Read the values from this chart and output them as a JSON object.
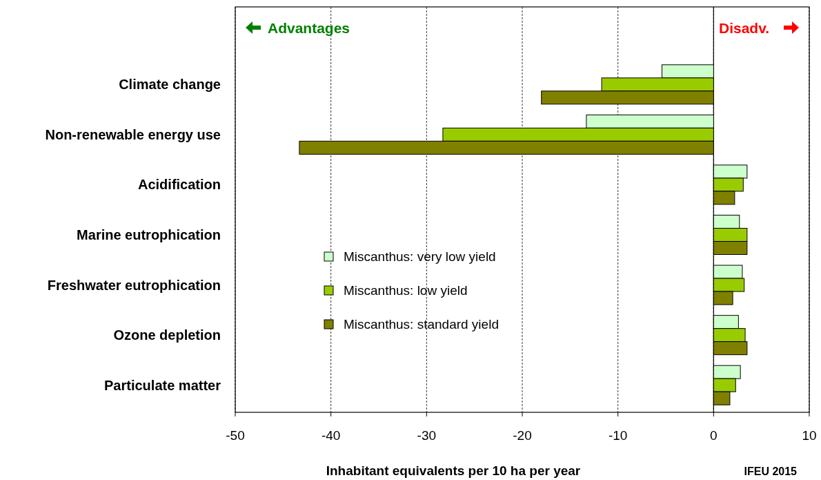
{
  "chart_data": {
    "type": "bar",
    "orientation": "horizontal",
    "xlabel": "Inhabitant equivalents per 10 ha per year",
    "categories": [
      "Climate change",
      "Non-renewable energy use",
      "Acidification",
      "Marine eutrophication",
      "Freshwater eutrophication",
      "Ozone depletion",
      "Particulate matter"
    ],
    "series": [
      {
        "name": "Miscanthus: very low yield",
        "color": "#ccffcc",
        "values": [
          -5.4,
          -13.3,
          3.5,
          2.7,
          3.0,
          2.6,
          2.8
        ]
      },
      {
        "name": "Miscanthus: low yield",
        "color": "#99cc00",
        "values": [
          -11.7,
          -28.3,
          3.1,
          3.5,
          3.2,
          3.3,
          2.3
        ]
      },
      {
        "name": "Miscanthus: standard yield",
        "color": "#808000",
        "values": [
          -18.0,
          -43.3,
          2.2,
          3.5,
          2.0,
          3.5,
          1.7
        ]
      }
    ],
    "xlim": [
      -50,
      10
    ],
    "xticks": [
      -50,
      -40,
      -30,
      -20,
      -10,
      0,
      10
    ],
    "grid": "x",
    "legend": "center",
    "ref_lines": [
      {
        "axis": "x",
        "value": 0,
        "color": "#000000",
        "line_style": "solid"
      }
    ],
    "annotations": [
      "Advantages",
      "Disadv.",
      "IFEU 2015"
    ]
  }
}
